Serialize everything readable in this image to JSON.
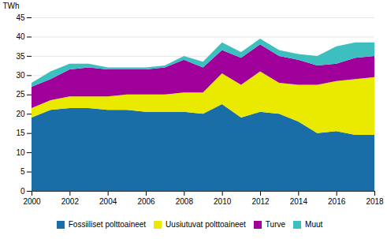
{
  "chart_data": {
    "type": "area",
    "stacked": true,
    "x": [
      2000,
      2001,
      2002,
      2003,
      2004,
      2005,
      2006,
      2007,
      2008,
      2009,
      2010,
      2011,
      2012,
      2013,
      2014,
      2015,
      2016,
      2017,
      2018
    ],
    "series": [
      {
        "name": "Fossiiliset polttoaineet",
        "color": "#1a6ea8",
        "values": [
          19.0,
          21.0,
          21.5,
          21.5,
          21.0,
          21.0,
          20.5,
          20.5,
          20.5,
          20.0,
          22.5,
          19.0,
          20.5,
          20.0,
          18.0,
          15.0,
          15.5,
          14.5,
          14.5
        ]
      },
      {
        "name": "Uusiutuvat polttoaineet",
        "color": "#eaea00",
        "values": [
          2.5,
          2.5,
          3.0,
          3.0,
          3.5,
          4.0,
          4.5,
          4.5,
          5.0,
          5.5,
          8.0,
          8.5,
          10.5,
          8.0,
          9.5,
          12.5,
          13.0,
          14.5,
          15.0
        ]
      },
      {
        "name": "Turve",
        "color": "#a0009a",
        "values": [
          5.5,
          5.5,
          7.0,
          7.5,
          7.0,
          6.5,
          6.5,
          7.0,
          8.5,
          6.5,
          6.0,
          7.0,
          7.0,
          7.0,
          6.5,
          5.0,
          4.5,
          5.5,
          5.5
        ]
      },
      {
        "name": "Muut",
        "color": "#3dbfbf",
        "values": [
          1.0,
          2.0,
          1.5,
          1.0,
          0.5,
          0.5,
          0.5,
          0.5,
          1.0,
          1.5,
          2.0,
          1.5,
          1.5,
          1.5,
          1.5,
          2.5,
          4.5,
          4.0,
          3.5
        ]
      }
    ],
    "ylabel": "TWh",
    "xlim": [
      2000,
      2018
    ],
    "xticks": [
      2000,
      2002,
      2004,
      2006,
      2008,
      2010,
      2012,
      2014,
      2016,
      2018
    ],
    "ylim": [
      0,
      45
    ],
    "yticks": [
      0,
      5,
      10,
      15,
      20,
      25,
      30,
      35,
      40,
      45
    ],
    "grid": true,
    "legend": "bottom"
  }
}
